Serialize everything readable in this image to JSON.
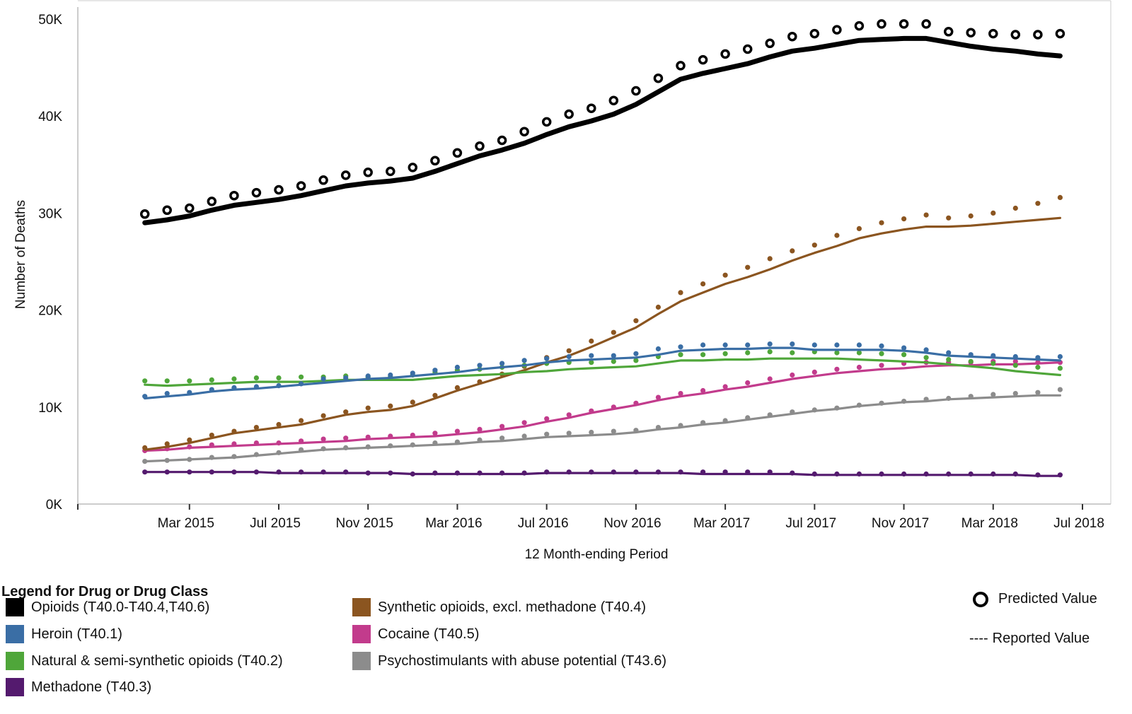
{
  "chart_data": {
    "type": "line",
    "xlabel": "12 Month-ending Period",
    "ylabel": "Number of Deaths",
    "ylim": [
      0,
      50000
    ],
    "y_ticks": [
      {
        "value": 0,
        "label": "0K"
      },
      {
        "value": 10000,
        "label": "10K"
      },
      {
        "value": 20000,
        "label": "20K"
      },
      {
        "value": 30000,
        "label": "30K"
      },
      {
        "value": 40000,
        "label": "40K"
      },
      {
        "value": 50000,
        "label": "50K"
      }
    ],
    "x_range": [
      "2014-10",
      "2018-07"
    ],
    "x_ticks": [
      {
        "date": "2015-03",
        "label": "Mar 2015"
      },
      {
        "date": "2015-07",
        "label": "Jul 2015"
      },
      {
        "date": "2015-11",
        "label": "Nov 2015"
      },
      {
        "date": "2016-03",
        "label": "Mar 2016"
      },
      {
        "date": "2016-07",
        "label": "Jul 2016"
      },
      {
        "date": "2016-11",
        "label": "Nov 2016"
      },
      {
        "date": "2017-03",
        "label": "Mar 2017"
      },
      {
        "date": "2017-07",
        "label": "Jul 2017"
      },
      {
        "date": "2017-11",
        "label": "Nov 2017"
      },
      {
        "date": "2018-03",
        "label": "Mar 2018"
      },
      {
        "date": "2018-07",
        "label": "Jul 2018"
      }
    ],
    "x": [
      "2015-01",
      "2015-02",
      "2015-03",
      "2015-04",
      "2015-05",
      "2015-06",
      "2015-07",
      "2015-08",
      "2015-09",
      "2015-10",
      "2015-11",
      "2015-12",
      "2016-01",
      "2016-02",
      "2016-03",
      "2016-04",
      "2016-05",
      "2016-06",
      "2016-07",
      "2016-08",
      "2016-09",
      "2016-10",
      "2016-11",
      "2016-12",
      "2017-01",
      "2017-02",
      "2017-03",
      "2017-04",
      "2017-05",
      "2017-06",
      "2017-07",
      "2017-08",
      "2017-09",
      "2017-10",
      "2017-11",
      "2017-12",
      "2018-01",
      "2018-02",
      "2018-03",
      "2018-04",
      "2018-05",
      "2018-06"
    ],
    "grid": false,
    "series": [
      {
        "name": "Opioids (T40.0-T40.4,T40.6)",
        "color": "#000000",
        "reported": [
          29000,
          29300,
          29700,
          30300,
          30800,
          31100,
          31400,
          31800,
          32300,
          32800,
          33100,
          33300,
          33600,
          34300,
          35100,
          35900,
          36500,
          37200,
          38100,
          38900,
          39500,
          40200,
          41200,
          42500,
          43800,
          44400,
          44900,
          45400,
          46100,
          46700,
          47000,
          47400,
          47800,
          47900,
          48000,
          48000,
          47600,
          47200,
          46900,
          46700,
          46400,
          46200
        ],
        "predicted": [
          29900,
          30300,
          30500,
          31200,
          31800,
          32100,
          32400,
          32800,
          33400,
          33900,
          34200,
          34300,
          34700,
          35400,
          36200,
          36900,
          37500,
          38400,
          39400,
          40200,
          40800,
          41600,
          42600,
          43900,
          45200,
          45800,
          46400,
          46900,
          47500,
          48200,
          48500,
          48900,
          49300,
          49500,
          49500,
          49500,
          48700,
          48600,
          48500,
          48400,
          48400,
          48500
        ]
      },
      {
        "name": "Heroin (T40.1)",
        "color": "#3a6ea5",
        "reported": [
          10900,
          11100,
          11300,
          11600,
          11800,
          11900,
          12100,
          12300,
          12500,
          12700,
          12900,
          13000,
          13200,
          13400,
          13600,
          13900,
          14100,
          14300,
          14600,
          14800,
          14900,
          15000,
          15100,
          15400,
          15800,
          15900,
          16000,
          16000,
          16100,
          16100,
          15900,
          15900,
          15900,
          15900,
          15800,
          15600,
          15300,
          15200,
          15100,
          15000,
          14900,
          14800
        ],
        "predicted": [
          11100,
          11400,
          11500,
          11800,
          12000,
          12100,
          12200,
          12400,
          12900,
          13000,
          13200,
          13300,
          13500,
          13800,
          14100,
          14300,
          14500,
          14800,
          15000,
          15200,
          15300,
          15300,
          15500,
          16000,
          16200,
          16400,
          16400,
          16400,
          16500,
          16500,
          16400,
          16400,
          16400,
          16300,
          16100,
          15900,
          15600,
          15400,
          15300,
          15200,
          15100,
          15200
        ]
      },
      {
        "name": "Natural & semi-synthetic opioids (T40.2)",
        "color": "#4fa63a",
        "reported": [
          12300,
          12200,
          12300,
          12400,
          12500,
          12600,
          12600,
          12600,
          12700,
          12800,
          12800,
          12800,
          12800,
          13000,
          13200,
          13300,
          13400,
          13600,
          13700,
          13900,
          14000,
          14100,
          14200,
          14500,
          14800,
          14800,
          14900,
          14900,
          15000,
          15000,
          15000,
          15000,
          14900,
          14800,
          14700,
          14600,
          14400,
          14200,
          14000,
          13700,
          13500,
          13300
        ],
        "predicted": [
          12700,
          12700,
          12700,
          12800,
          12900,
          13000,
          13000,
          13100,
          13100,
          13200,
          13100,
          13100,
          13300,
          13600,
          13800,
          13900,
          14100,
          14300,
          14500,
          14600,
          14600,
          14700,
          14800,
          15200,
          15400,
          15400,
          15500,
          15600,
          15700,
          15600,
          15700,
          15600,
          15600,
          15500,
          15400,
          15100,
          14900,
          14700,
          14500,
          14300,
          14100,
          14000
        ]
      },
      {
        "name": "Methadone (T40.3)",
        "color": "#541a6e",
        "reported": [
          3300,
          3300,
          3300,
          3300,
          3300,
          3300,
          3200,
          3200,
          3200,
          3200,
          3200,
          3200,
          3100,
          3100,
          3100,
          3100,
          3100,
          3100,
          3200,
          3200,
          3200,
          3200,
          3200,
          3200,
          3200,
          3100,
          3100,
          3100,
          3100,
          3100,
          3000,
          3000,
          3000,
          3000,
          3000,
          3000,
          3000,
          3000,
          3000,
          3000,
          2900,
          2900
        ],
        "predicted": [
          3300,
          3300,
          3300,
          3300,
          3300,
          3300,
          3300,
          3300,
          3300,
          3300,
          3200,
          3200,
          3100,
          3200,
          3200,
          3200,
          3200,
          3200,
          3300,
          3300,
          3300,
          3300,
          3300,
          3300,
          3300,
          3300,
          3300,
          3300,
          3300,
          3200,
          3100,
          3100,
          3100,
          3100,
          3100,
          3100,
          3100,
          3100,
          3100,
          3100,
          3000,
          3000
        ]
      },
      {
        "name": "Synthetic opioids, excl. methadone (T40.4)",
        "color": "#8b5520",
        "reported": [
          5600,
          5900,
          6300,
          6800,
          7300,
          7600,
          7900,
          8200,
          8700,
          9200,
          9500,
          9700,
          10100,
          10900,
          11700,
          12400,
          13100,
          13800,
          14600,
          15300,
          16200,
          17200,
          18200,
          19600,
          20900,
          21800,
          22700,
          23400,
          24200,
          25100,
          25900,
          26600,
          27400,
          27900,
          28300,
          28600,
          28600,
          28700,
          28900,
          29100,
          29300,
          29500
        ],
        "predicted": [
          5800,
          6200,
          6600,
          7100,
          7500,
          7900,
          8200,
          8600,
          9100,
          9500,
          9900,
          10100,
          10500,
          11200,
          12000,
          12600,
          13400,
          14200,
          15100,
          15800,
          16800,
          17700,
          18900,
          20300,
          21800,
          22700,
          23600,
          24400,
          25300,
          26100,
          26700,
          27700,
          28400,
          29000,
          29400,
          29800,
          29500,
          29700,
          30000,
          30500,
          31000,
          31600
        ],
        "x_predicted": [
          "2015-01",
          "2015-02",
          "2015-03",
          "2015-04",
          "2015-05",
          "2015-06",
          "2015-07",
          "2015-08",
          "2015-09",
          "2015-10",
          "2015-11",
          "2015-12",
          "2016-01",
          "2016-02",
          "2016-03",
          "2016-04",
          "2016-05",
          "2016-06",
          "2016-07",
          "2016-08",
          "2016-09",
          "2016-10",
          "2016-11",
          "2016-12",
          "2017-01",
          "2017-02",
          "2017-03",
          "2017-04",
          "2017-05",
          "2017-06",
          "2017-07",
          "2017-08",
          "2017-09",
          "2017-10",
          "2017-11",
          "2017-12",
          "2018-01",
          "2018-02",
          "2018-03",
          "2018-04",
          "2018-05",
          "2018-06"
        ]
      },
      {
        "name": "Cocaine (T40.5)",
        "color": "#c23b8c",
        "reported": [
          5500,
          5600,
          5800,
          5900,
          6000,
          6100,
          6200,
          6300,
          6400,
          6500,
          6700,
          6800,
          6900,
          7000,
          7200,
          7400,
          7700,
          8000,
          8500,
          8900,
          9400,
          9800,
          10200,
          10700,
          11100,
          11400,
          11800,
          12100,
          12500,
          12900,
          13200,
          13500,
          13700,
          13900,
          14000,
          14200,
          14300,
          14300,
          14400,
          14400,
          14500,
          14600
        ],
        "predicted": [
          5500,
          5700,
          5900,
          6100,
          6200,
          6300,
          6300,
          6500,
          6700,
          6800,
          6900,
          7000,
          7100,
          7300,
          7500,
          7700,
          8000,
          8400,
          8800,
          9200,
          9600,
          10000,
          10400,
          11000,
          11400,
          11700,
          12100,
          12500,
          12900,
          13300,
          13600,
          13900,
          14100,
          14300,
          14500,
          14600,
          14600,
          14600,
          14700,
          14700,
          14600,
          14600
        ]
      },
      {
        "name": "Psychostimulants with abuse potential (T43.6)",
        "color": "#8c8c8c",
        "reported": [
          4400,
          4500,
          4600,
          4700,
          4800,
          5000,
          5200,
          5400,
          5600,
          5700,
          5800,
          5900,
          6000,
          6100,
          6200,
          6400,
          6500,
          6700,
          6900,
          7000,
          7100,
          7200,
          7400,
          7700,
          7900,
          8200,
          8400,
          8700,
          9000,
          9300,
          9600,
          9800,
          10100,
          10300,
          10500,
          10600,
          10800,
          10900,
          11000,
          11100,
          11200,
          11200
        ],
        "predicted": [
          4400,
          4500,
          4600,
          4800,
          4900,
          5100,
          5300,
          5600,
          5700,
          5800,
          5900,
          6000,
          6100,
          6300,
          6400,
          6600,
          6800,
          7000,
          7200,
          7300,
          7400,
          7500,
          7600,
          7900,
          8100,
          8400,
          8600,
          8900,
          9200,
          9500,
          9700,
          9900,
          10200,
          10400,
          10600,
          10800,
          10900,
          11100,
          11300,
          11400,
          11500,
          11800
        ]
      }
    ]
  },
  "legend": {
    "title": "Legend for Drug or Drug Class",
    "items": [
      {
        "label": "Opioids (T40.0-T40.4,T40.6)",
        "color": "#000000"
      },
      {
        "label": "Heroin (T40.1)",
        "color": "#3a6ea5"
      },
      {
        "label": "Natural & semi-synthetic opioids (T40.2)",
        "color": "#4fa63a"
      },
      {
        "label": "Methadone (T40.3)",
        "color": "#541a6e"
      },
      {
        "label": "Synthetic opioids, excl. methadone (T40.4)",
        "color": "#8b5520"
      },
      {
        "label": "Cocaine (T40.5)",
        "color": "#c23b8c"
      },
      {
        "label": "Psychostimulants with abuse potential (T43.6)",
        "color": "#8c8c8c"
      }
    ],
    "predicted_label": "Predicted Value",
    "reported_dash": "----",
    "reported_label": "Reported Value"
  }
}
